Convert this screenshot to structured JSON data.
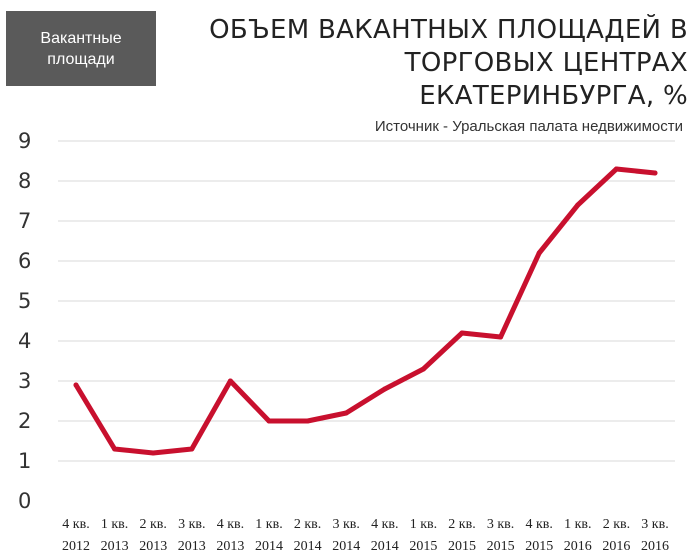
{
  "header": {
    "tag_label": "Вакантные площади",
    "title": "ОБЪЕМ ВАКАНТНЫХ ПЛОЩАДЕЙ В ТОРГОВЫХ ЦЕНТРАХ ЕКАТЕРИНБУРГА, %",
    "source": "Источник - Уральская палата недвижимости"
  },
  "colors": {
    "line": "#c8102e",
    "grid": "#d9d9d9",
    "tag_background": "#5a5a5a"
  },
  "chart_data": {
    "type": "line",
    "title": "ОБЪЕМ ВАКАНТНЫХ ПЛОЩАДЕЙ В ТОРГОВЫХ ЦЕНТРАХ ЕКАТЕРИНБУРГА, %",
    "categories": [
      [
        "4 кв.",
        "2012"
      ],
      [
        "1 кв.",
        "2013"
      ],
      [
        "2 кв.",
        "2013"
      ],
      [
        "3 кв.",
        "2013"
      ],
      [
        "4 кв.",
        "2013"
      ],
      [
        "1 кв.",
        "2014"
      ],
      [
        "2 кв.",
        "2014"
      ],
      [
        "3 кв.",
        "2014"
      ],
      [
        "4 кв.",
        "2014"
      ],
      [
        "1 кв.",
        "2015"
      ],
      [
        "2 кв.",
        "2015"
      ],
      [
        "3 кв.",
        "2015"
      ],
      [
        "4 кв.",
        "2015"
      ],
      [
        "1 кв.",
        "2016"
      ],
      [
        "2 кв.",
        "2016"
      ],
      [
        "3 кв.",
        "2016"
      ]
    ],
    "series": [
      {
        "values": [
          2.9,
          1.3,
          1.2,
          1.3,
          3.0,
          2.0,
          2.0,
          2.2,
          2.8,
          3.3,
          4.2,
          4.1,
          6.2,
          7.4,
          8.3,
          8.2
        ]
      }
    ],
    "yticks": [
      "0",
      "1",
      "2",
      "3",
      "4",
      "5",
      "6",
      "7",
      "8",
      "9"
    ],
    "ylim": [
      0,
      9
    ],
    "grid": true,
    "xlabel": "",
    "ylabel": ""
  }
}
